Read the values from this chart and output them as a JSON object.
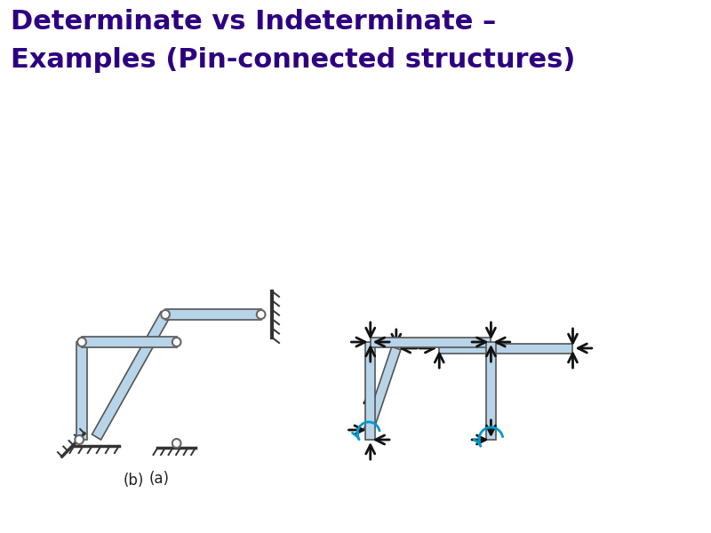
{
  "title_line1": "Determinate vs Indeterminate –",
  "title_line2": "Examples (Pin-connected structures)",
  "title_color": "#2d0080",
  "title_fontsize": 22,
  "bg_color": "#ffffff",
  "member_color": "#b8d4e8",
  "member_edge_color": "#555555",
  "arrow_color": "#111111",
  "arrow_color_blue": "#0099cc"
}
